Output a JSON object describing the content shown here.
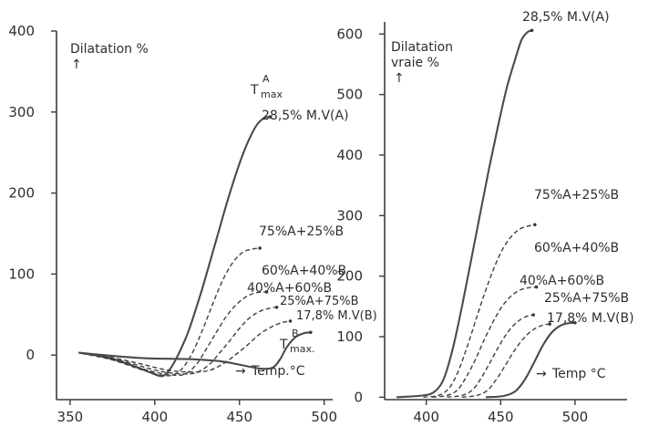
{
  "chart_data": [
    {
      "type": "line",
      "title": "",
      "ylabel": "Dilatation %",
      "xlabel": "Temp.°C",
      "xlim": [
        350,
        500
      ],
      "ylim": [
        -30,
        400
      ],
      "x_ticks": [
        "350",
        "400",
        "450",
        "500"
      ],
      "y_ticks": [
        "0",
        "100",
        "200",
        "300",
        "400"
      ],
      "x_tick_values": [
        350,
        400,
        450,
        500
      ],
      "y_tick_values": [
        0,
        100,
        200,
        300,
        400
      ],
      "annotations": {
        "tmax_a": "T",
        "tmax_a_super": "A",
        "tmax_a_sub": "max",
        "tmax_b": "T",
        "tmax_b_super": "B",
        "tmax_b_sub": "max."
      },
      "series": [
        {
          "name": "28,5% M.V(A)",
          "style": "solid",
          "points": [
            [
              355,
              3
            ],
            [
              372,
              -3
            ],
            [
              388,
              -14
            ],
            [
              398,
              -22
            ],
            [
              404,
              -26
            ],
            [
              408,
              -20
            ],
            [
              413,
              -3
            ],
            [
              420,
              30
            ],
            [
              428,
              82
            ],
            [
              436,
              140
            ],
            [
              444,
              198
            ],
            [
              452,
              248
            ],
            [
              459,
              280
            ],
            [
              464,
              292
            ],
            [
              468,
              294
            ]
          ]
        },
        {
          "name": "75%A+25%B",
          "style": "dashed",
          "points": [
            [
              357,
              2
            ],
            [
              375,
              -6
            ],
            [
              392,
              -18
            ],
            [
              402,
              -24
            ],
            [
              410,
              -25
            ],
            [
              416,
              -17
            ],
            [
              422,
              2
            ],
            [
              428,
              30
            ],
            [
              434,
              62
            ],
            [
              440,
              92
            ],
            [
              446,
              114
            ],
            [
              452,
              127
            ],
            [
              458,
              131
            ],
            [
              462,
              132
            ]
          ]
        },
        {
          "name": "60%A+40%B",
          "style": "dashed",
          "points": [
            [
              360,
              2
            ],
            [
              380,
              -8
            ],
            [
              396,
              -19
            ],
            [
              408,
              -24
            ],
            [
              417,
              -24
            ],
            [
              424,
              -13
            ],
            [
              430,
              6
            ],
            [
              436,
              27
            ],
            [
              442,
              47
            ],
            [
              448,
              62
            ],
            [
              454,
              72
            ],
            [
              460,
              77
            ],
            [
              466,
              78
            ]
          ]
        },
        {
          "name": "40%A+60%B",
          "style": "dashed",
          "points": [
            [
              362,
              2
            ],
            [
              384,
              -9
            ],
            [
              401,
              -19
            ],
            [
              414,
              -23
            ],
            [
              424,
              -22
            ],
            [
              432,
              -12
            ],
            [
              438,
              2
            ],
            [
              444,
              17
            ],
            [
              450,
              33
            ],
            [
              456,
              46
            ],
            [
              462,
              54
            ],
            [
              468,
              58
            ],
            [
              472,
              59
            ]
          ]
        },
        {
          "name": "25%A+75%B",
          "style": "dashed",
          "points": [
            [
              365,
              1
            ],
            [
              388,
              -9
            ],
            [
              406,
              -18
            ],
            [
              420,
              -21
            ],
            [
              432,
              -19
            ],
            [
              441,
              -10
            ],
            [
              448,
              1
            ],
            [
              455,
              13
            ],
            [
              462,
              26
            ],
            [
              469,
              35
            ],
            [
              475,
              40
            ],
            [
              480,
              42
            ]
          ]
        },
        {
          "name": "17,8% M.V(B)",
          "style": "solid",
          "points": [
            [
              355,
              3
            ],
            [
              375,
              -1
            ],
            [
              395,
              -4
            ],
            [
              420,
              -5
            ],
            [
              440,
              -8
            ],
            [
              455,
              -14
            ],
            [
              464,
              -17
            ],
            [
              470,
              -15
            ],
            [
              474,
              -5
            ],
            [
              478,
              10
            ],
            [
              483,
              22
            ],
            [
              488,
              27
            ],
            [
              492,
              28
            ]
          ]
        }
      ]
    },
    {
      "type": "line",
      "title": "",
      "ylabel": "Dilatation vraie %",
      "xlabel": "Temp  °C",
      "xlim": [
        370,
        545
      ],
      "ylim": [
        0,
        620
      ],
      "x_ticks": [
        "400",
        "450",
        "500"
      ],
      "y_ticks": [
        "0",
        "100",
        "200",
        "300",
        "400",
        "500",
        "600"
      ],
      "x_tick_values": [
        400,
        450,
        500
      ],
      "y_tick_values": [
        0,
        100,
        200,
        300,
        400,
        500,
        600
      ],
      "series": [
        {
          "name": "28,5% M.V(A)",
          "style": "solid",
          "points": [
            [
              380,
              0
            ],
            [
              398,
              3
            ],
            [
              406,
              10
            ],
            [
              412,
              32
            ],
            [
              418,
              82
            ],
            [
              424,
              150
            ],
            [
              430,
              225
            ],
            [
              436,
              300
            ],
            [
              442,
              375
            ],
            [
              448,
              445
            ],
            [
              454,
              510
            ],
            [
              460,
              560
            ],
            [
              464,
              590
            ],
            [
              468,
              603
            ],
            [
              471,
              606
            ]
          ]
        },
        {
          "name": "75%A+25%B",
          "style": "dashed",
          "points": [
            [
              398,
              0
            ],
            [
              408,
              3
            ],
            [
              415,
              14
            ],
            [
              421,
              40
            ],
            [
              427,
              80
            ],
            [
              433,
              125
            ],
            [
              439,
              170
            ],
            [
              445,
              210
            ],
            [
              451,
              243
            ],
            [
              457,
              265
            ],
            [
              463,
              278
            ],
            [
              469,
              283
            ],
            [
              473,
              285
            ]
          ]
        },
        {
          "name": "60%A+40%B",
          "style": "dashed",
          "points": [
            [
              404,
              0
            ],
            [
              414,
              3
            ],
            [
              421,
              12
            ],
            [
              427,
              34
            ],
            [
              433,
              62
            ],
            [
              439,
              95
            ],
            [
              445,
              125
            ],
            [
              451,
              150
            ],
            [
              457,
              167
            ],
            [
              463,
              177
            ],
            [
              469,
              181
            ],
            [
              474,
              182
            ]
          ]
        },
        {
          "name": "40%A+60%B",
          "style": "dashed",
          "points": [
            [
              414,
              0
            ],
            [
              424,
              3
            ],
            [
              431,
              12
            ],
            [
              437,
              32
            ],
            [
              443,
              58
            ],
            [
              449,
              85
            ],
            [
              455,
              108
            ],
            [
              461,
              124
            ],
            [
              467,
              133
            ],
            [
              472,
              136
            ]
          ]
        },
        {
          "name": "25%A+75%B",
          "style": "dashed",
          "points": [
            [
              424,
              0
            ],
            [
              434,
              3
            ],
            [
              441,
              11
            ],
            [
              447,
              29
            ],
            [
              453,
              52
            ],
            [
              459,
              76
            ],
            [
              465,
              96
            ],
            [
              471,
              110
            ],
            [
              477,
              118
            ],
            [
              483,
              121
            ]
          ]
        },
        {
          "name": "17,8% M.V(B)",
          "style": "solid",
          "points": [
            [
              440,
              0
            ],
            [
              452,
              2
            ],
            [
              460,
              10
            ],
            [
              466,
              28
            ],
            [
              472,
              55
            ],
            [
              478,
              84
            ],
            [
              484,
              106
            ],
            [
              490,
              118
            ],
            [
              495,
              122
            ],
            [
              500,
              123
            ]
          ]
        }
      ],
      "annotation_labels": {
        "top_a": "28,5% M.V(A)",
        "a75": "75%A+25%B",
        "a60": "60%A+40%B",
        "a40": "40%A+60%B",
        "a25": "25%A+75%B",
        "b": "17,8% M.V(B)"
      }
    }
  ]
}
